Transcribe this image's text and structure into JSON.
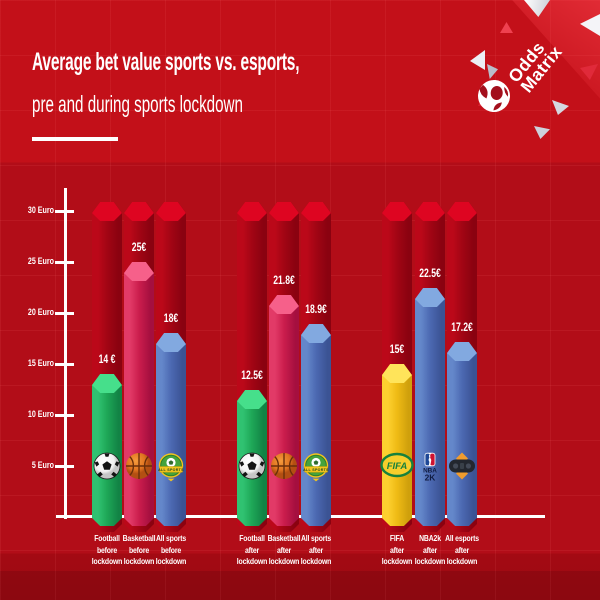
{
  "header": {
    "title_bold": "Average bet value sports vs. esports,",
    "title_light": "pre and during sports lockdown"
  },
  "logo": {
    "line1": "Odds",
    "line2": "Matrix",
    "icon": "ball-icon"
  },
  "colors": {
    "background": "#b20d18",
    "axis": "#ffffff",
    "track_bar": "#a20514",
    "green": "#1ea757",
    "pink": "#cb1d4d",
    "blue": "#4c69b2",
    "yellow": "#efbb15"
  },
  "chart_data": {
    "type": "bar",
    "title": "Average bet value sports vs. esports, pre and during sports lockdown",
    "unit": "Euro",
    "ylim": [
      0,
      30
    ],
    "grid": true,
    "track_top_value": 30.8,
    "yticks": [
      {
        "value": 5,
        "label": "5 Euro"
      },
      {
        "value": 10,
        "label": "10 Euro"
      },
      {
        "value": 15,
        "label": "15 Euro"
      },
      {
        "value": 20,
        "label": "20 Euro"
      },
      {
        "value": 25,
        "label": "25 Euro"
      },
      {
        "value": 30,
        "label": "30 Euro"
      }
    ],
    "groups": [
      {
        "id": "sports-before-lockdown",
        "bars": [
          {
            "category": "Football before lockdown",
            "label_lines": [
              "Football",
              "before",
              "lockdown"
            ],
            "value": 14,
            "value_label": "14 €",
            "color_key": "green",
            "icon": "football-icon"
          },
          {
            "category": "Basketball before lockdown",
            "label_lines": [
              "Basketball",
              "before",
              "lockdown"
            ],
            "value": 25,
            "value_label": "25€",
            "color_key": "pink",
            "icon": "basketball-icon"
          },
          {
            "category": "All sports before lockdown",
            "label_lines": [
              "All sports",
              "before",
              "lockdown"
            ],
            "value": 18,
            "value_label": "18€",
            "color_key": "blue",
            "icon": "all-sports-badge-icon"
          }
        ]
      },
      {
        "id": "sports-after-lockdown",
        "bars": [
          {
            "category": "Football after lockdown",
            "label_lines": [
              "Football",
              "after",
              "lockdown"
            ],
            "value": 12.5,
            "value_label": "12.5€",
            "color_key": "green",
            "icon": "football-icon"
          },
          {
            "category": "Basketball after lockdown",
            "label_lines": [
              "Basketball",
              "after",
              "lockdown"
            ],
            "value": 21.8,
            "value_label": "21.8€",
            "color_key": "pink",
            "icon": "basketball-icon"
          },
          {
            "category": "All sports after lockdown",
            "label_lines": [
              "All sports",
              "after",
              "lockdown"
            ],
            "value": 18.9,
            "value_label": "18.9€",
            "color_key": "blue",
            "icon": "all-sports-badge-icon"
          }
        ]
      },
      {
        "id": "esports-after-lockdown",
        "bars": [
          {
            "category": "FIFA after lockdown",
            "label_lines": [
              "FIFA",
              "after",
              "lockdown"
            ],
            "value": 15,
            "value_label": "15€",
            "color_key": "yellow",
            "icon": "fifa-icon"
          },
          {
            "category": "NBA2k after lockdown",
            "label_lines": [
              "NBA2k",
              "after",
              "lockdown"
            ],
            "value": 22.5,
            "value_label": "22.5€",
            "color_key": "blue",
            "icon": "nba2k-icon"
          },
          {
            "category": "All esports after lockdown",
            "label_lines": [
              "All esports",
              "after",
              "lockdown"
            ],
            "value": 17.2,
            "value_label": "17.2€",
            "color_key": "blue",
            "icon": "gamepad-icon"
          }
        ]
      }
    ]
  }
}
